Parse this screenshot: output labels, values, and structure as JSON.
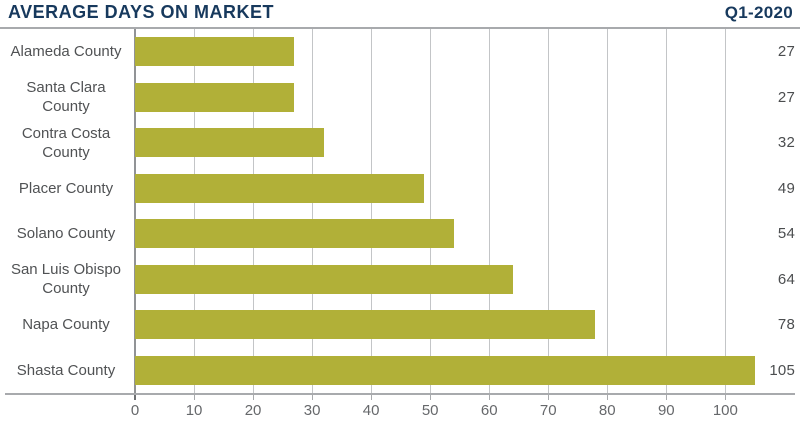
{
  "header": {
    "title": "AVERAGE DAYS ON MARKET",
    "period": "Q1-2020"
  },
  "chart_data": {
    "type": "bar",
    "orientation": "horizontal",
    "title": "AVERAGE DAYS ON MARKET",
    "subtitle": "Q1-2020",
    "categories": [
      "Alameda County",
      "Santa Clara County",
      "Contra Costa County",
      "Placer County",
      "Solano County",
      "San Luis Obispo County",
      "Napa County",
      "Shasta County"
    ],
    "values": [
      27,
      27,
      32,
      49,
      54,
      64,
      78,
      105
    ],
    "xlabel": "",
    "ylabel": "",
    "x_ticks": [
      0,
      10,
      20,
      30,
      40,
      50,
      60,
      70,
      80,
      90,
      100
    ],
    "xlim": [
      0,
      111.8
    ],
    "grid": true,
    "legend": "none",
    "value_labels_position": "right-edge",
    "colors": {
      "bar": "#b1b038",
      "title": "#17395d",
      "category_label": "#505254",
      "value_label": "#4b4d4f",
      "tick_label": "#66686b",
      "gridline": "#c3c5c7",
      "zero_line": "#919396",
      "axis_line": "#a8aaad"
    }
  }
}
